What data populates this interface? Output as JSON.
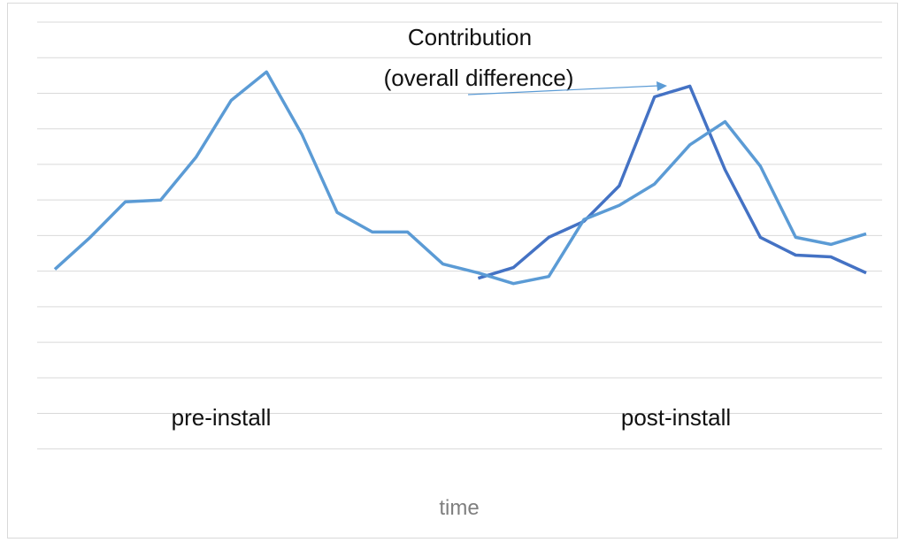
{
  "chart_data": {
    "type": "line",
    "title": "",
    "xlabel": "time",
    "ylabel": "",
    "grid": true,
    "y_ticks_shown": false,
    "x": [
      1,
      2,
      3,
      4,
      5,
      6,
      7,
      8,
      9,
      10,
      11,
      12,
      13,
      14,
      15,
      16,
      17,
      18,
      19,
      20,
      21,
      22,
      23,
      24
    ],
    "ylim": [
      -6,
      7
    ],
    "series": [
      {
        "values": [
          null,
          null,
          null,
          null,
          null,
          null,
          null,
          null,
          null,
          null,
          null,
          null,
          -0.2,
          0.1,
          0.95,
          1.4,
          2.4,
          4.9,
          5.2,
          2.85,
          0.95,
          0.45,
          0.4,
          -0.05
        ]
      },
      {
        "values": [
          0.05,
          0.95,
          1.95,
          2.0,
          3.2,
          4.8,
          5.6,
          3.85,
          1.65,
          1.1,
          1.1,
          0.2,
          -0.05,
          -0.35,
          -0.15,
          1.45,
          1.85,
          2.45,
          3.55,
          4.2,
          2.95,
          0.95,
          0.75,
          1.05
        ]
      }
    ],
    "colors": {
      "dark_series": "#4472c4",
      "light_series": "#5b9bd5",
      "grid": "#d9d9d9",
      "axis_title": "#7f7f7f"
    },
    "annotations": {
      "contribution_line1": "Contribution",
      "contribution_line2": "(overall difference)",
      "pre_install": "pre-install",
      "post_install": "post-install"
    }
  }
}
